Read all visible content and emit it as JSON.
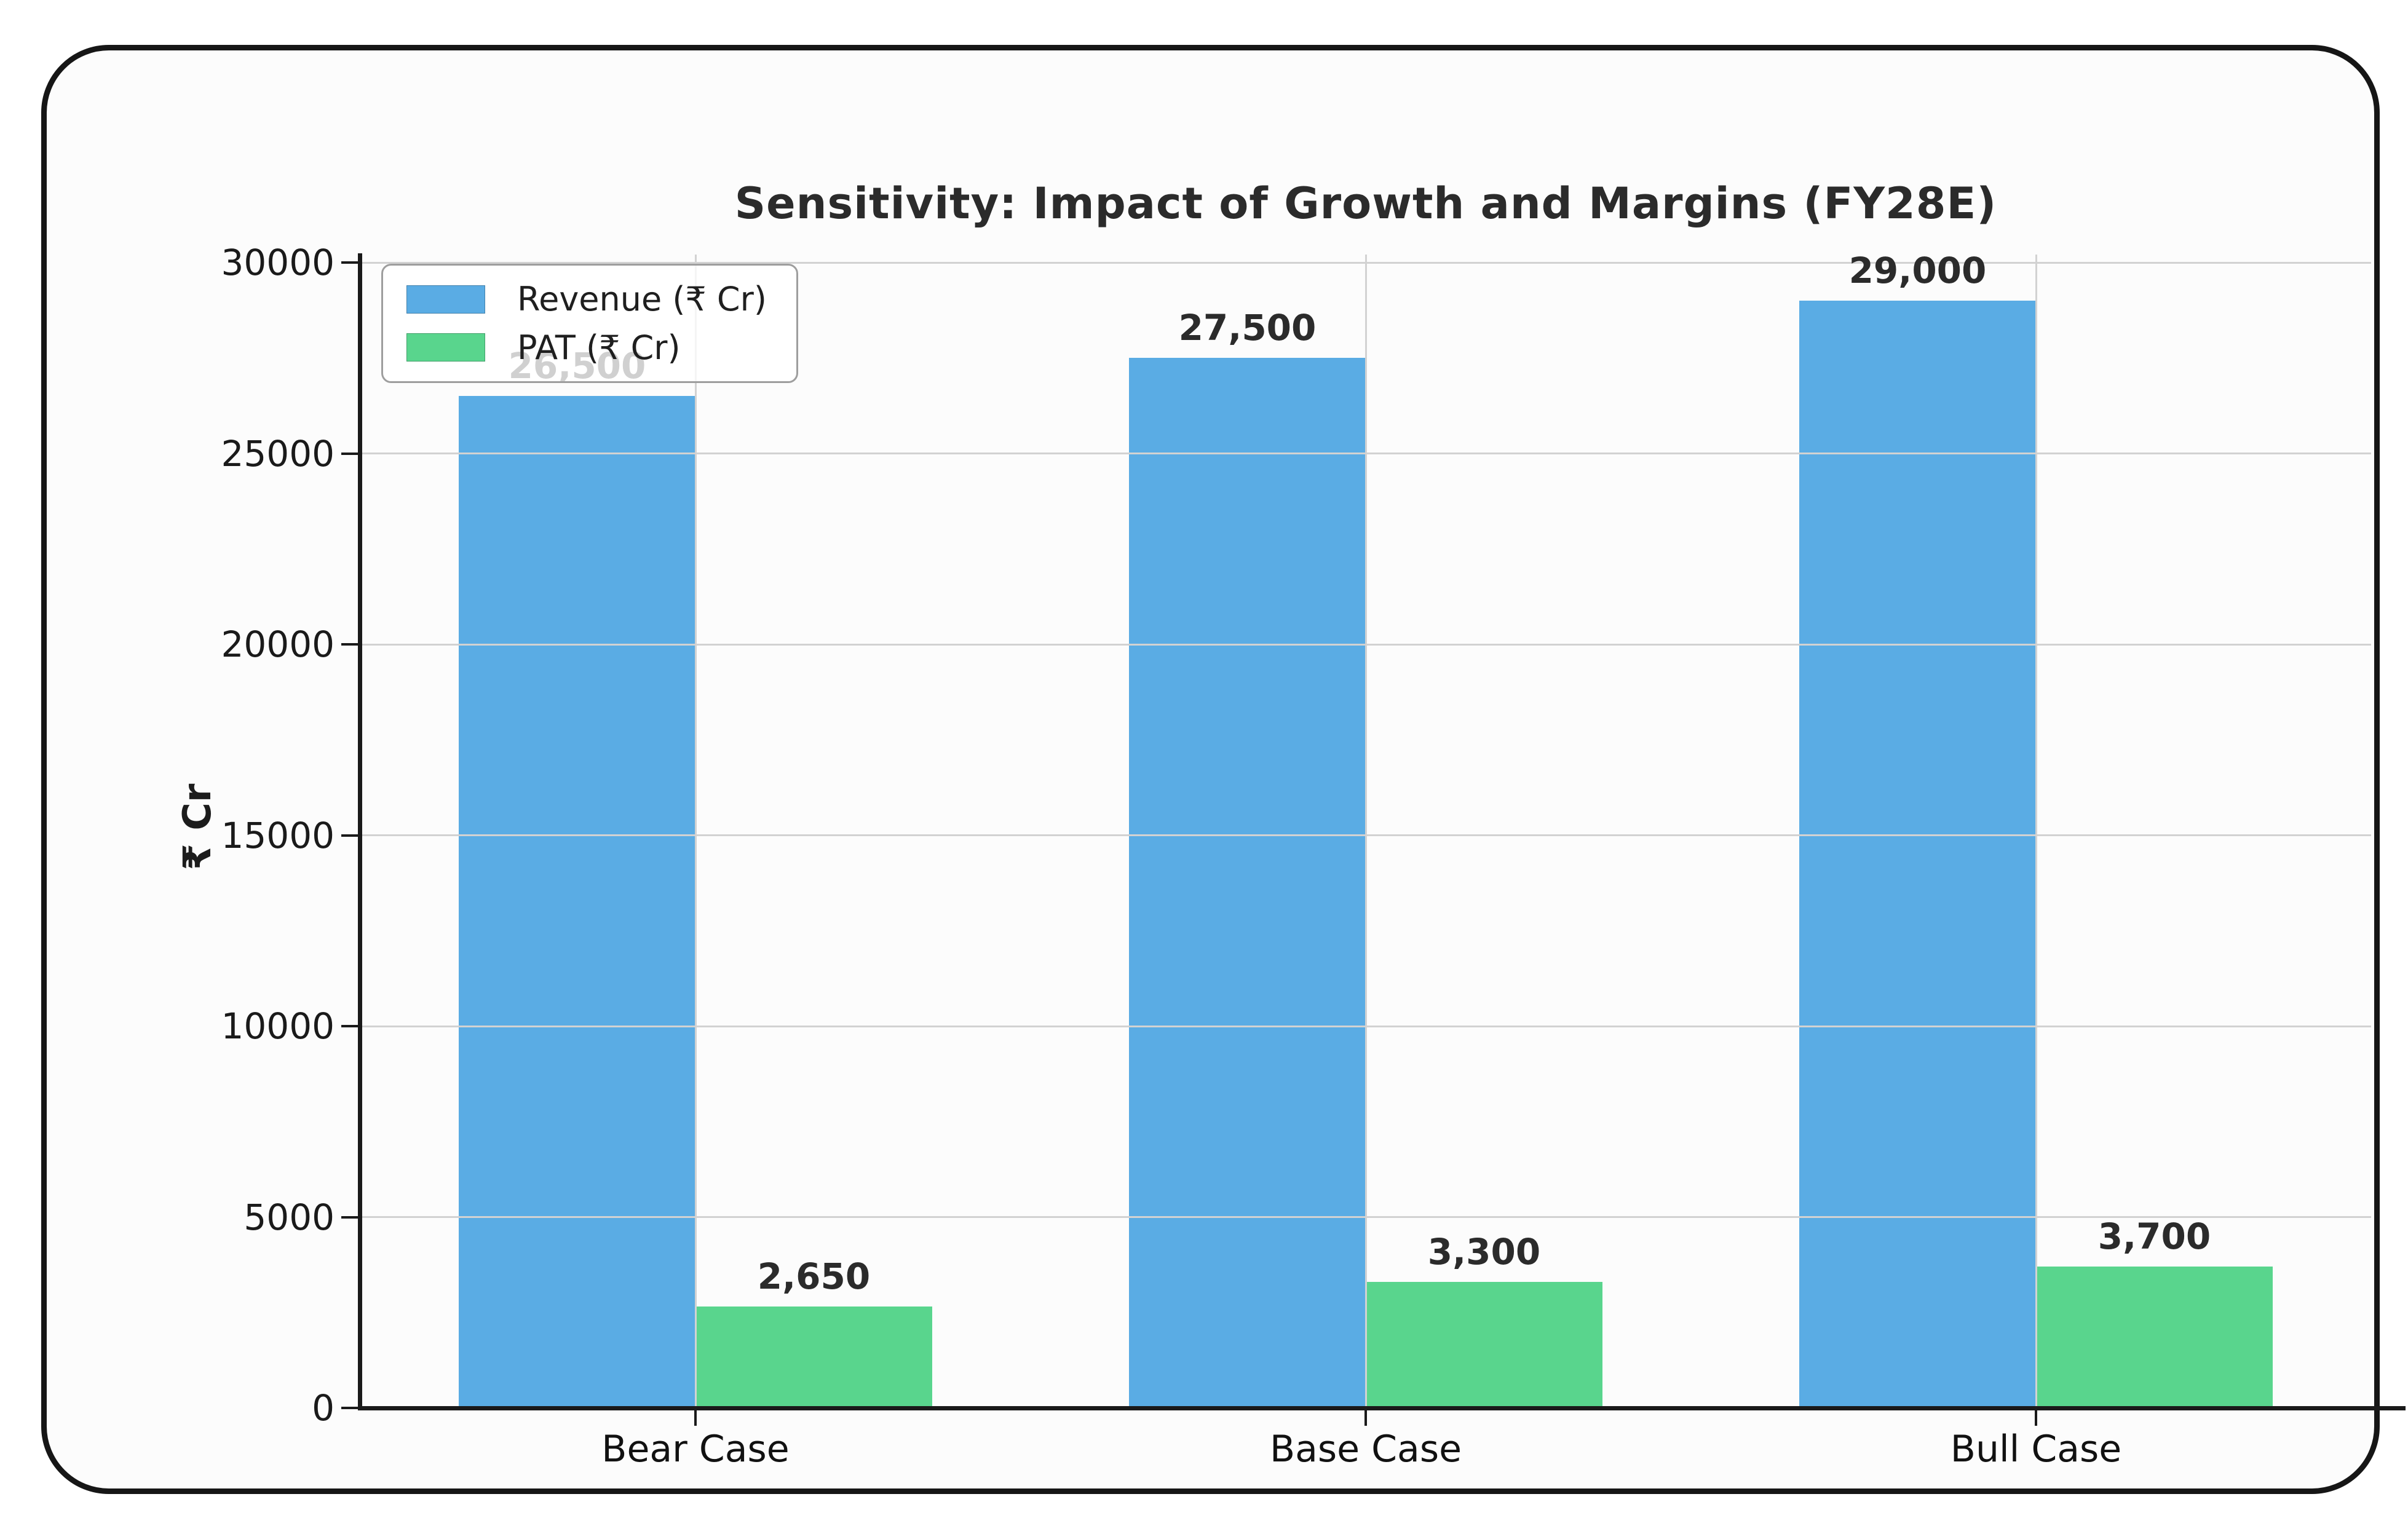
{
  "chart_data": {
    "type": "bar",
    "title": "Sensitivity: Impact of Growth and Margins (FY28E)",
    "ylabel": "₹ Cr",
    "xlabel": "",
    "categories": [
      "Bear Case",
      "Base Case",
      "Bull Case"
    ],
    "series": [
      {
        "name": "Revenue (₹ Cr)",
        "color": "#5aace4",
        "values": [
          26500,
          27500,
          29000
        ],
        "value_labels": [
          "26,500",
          "27,500",
          "29,000"
        ]
      },
      {
        "name": "PAT (₹ Cr)",
        "color": "#59d58d",
        "values": [
          2650,
          3300,
          3700
        ],
        "value_labels": [
          "2,650",
          "3,300",
          "3,700"
        ]
      }
    ],
    "ylim": [
      0,
      30000
    ],
    "yticks": [
      0,
      5000,
      10000,
      15000,
      20000,
      25000,
      30000
    ],
    "ytick_labels": [
      "0",
      "5000",
      "10000",
      "15000",
      "20000",
      "25000",
      "30000"
    ],
    "grid": "on",
    "legend_position": "upper left"
  },
  "colors": {
    "grid": "#d2d2d2",
    "spine": "#1a1a1a",
    "title_text": "#2b2b2b",
    "card_border": "#161616",
    "card_background": "#fcfcfc"
  }
}
